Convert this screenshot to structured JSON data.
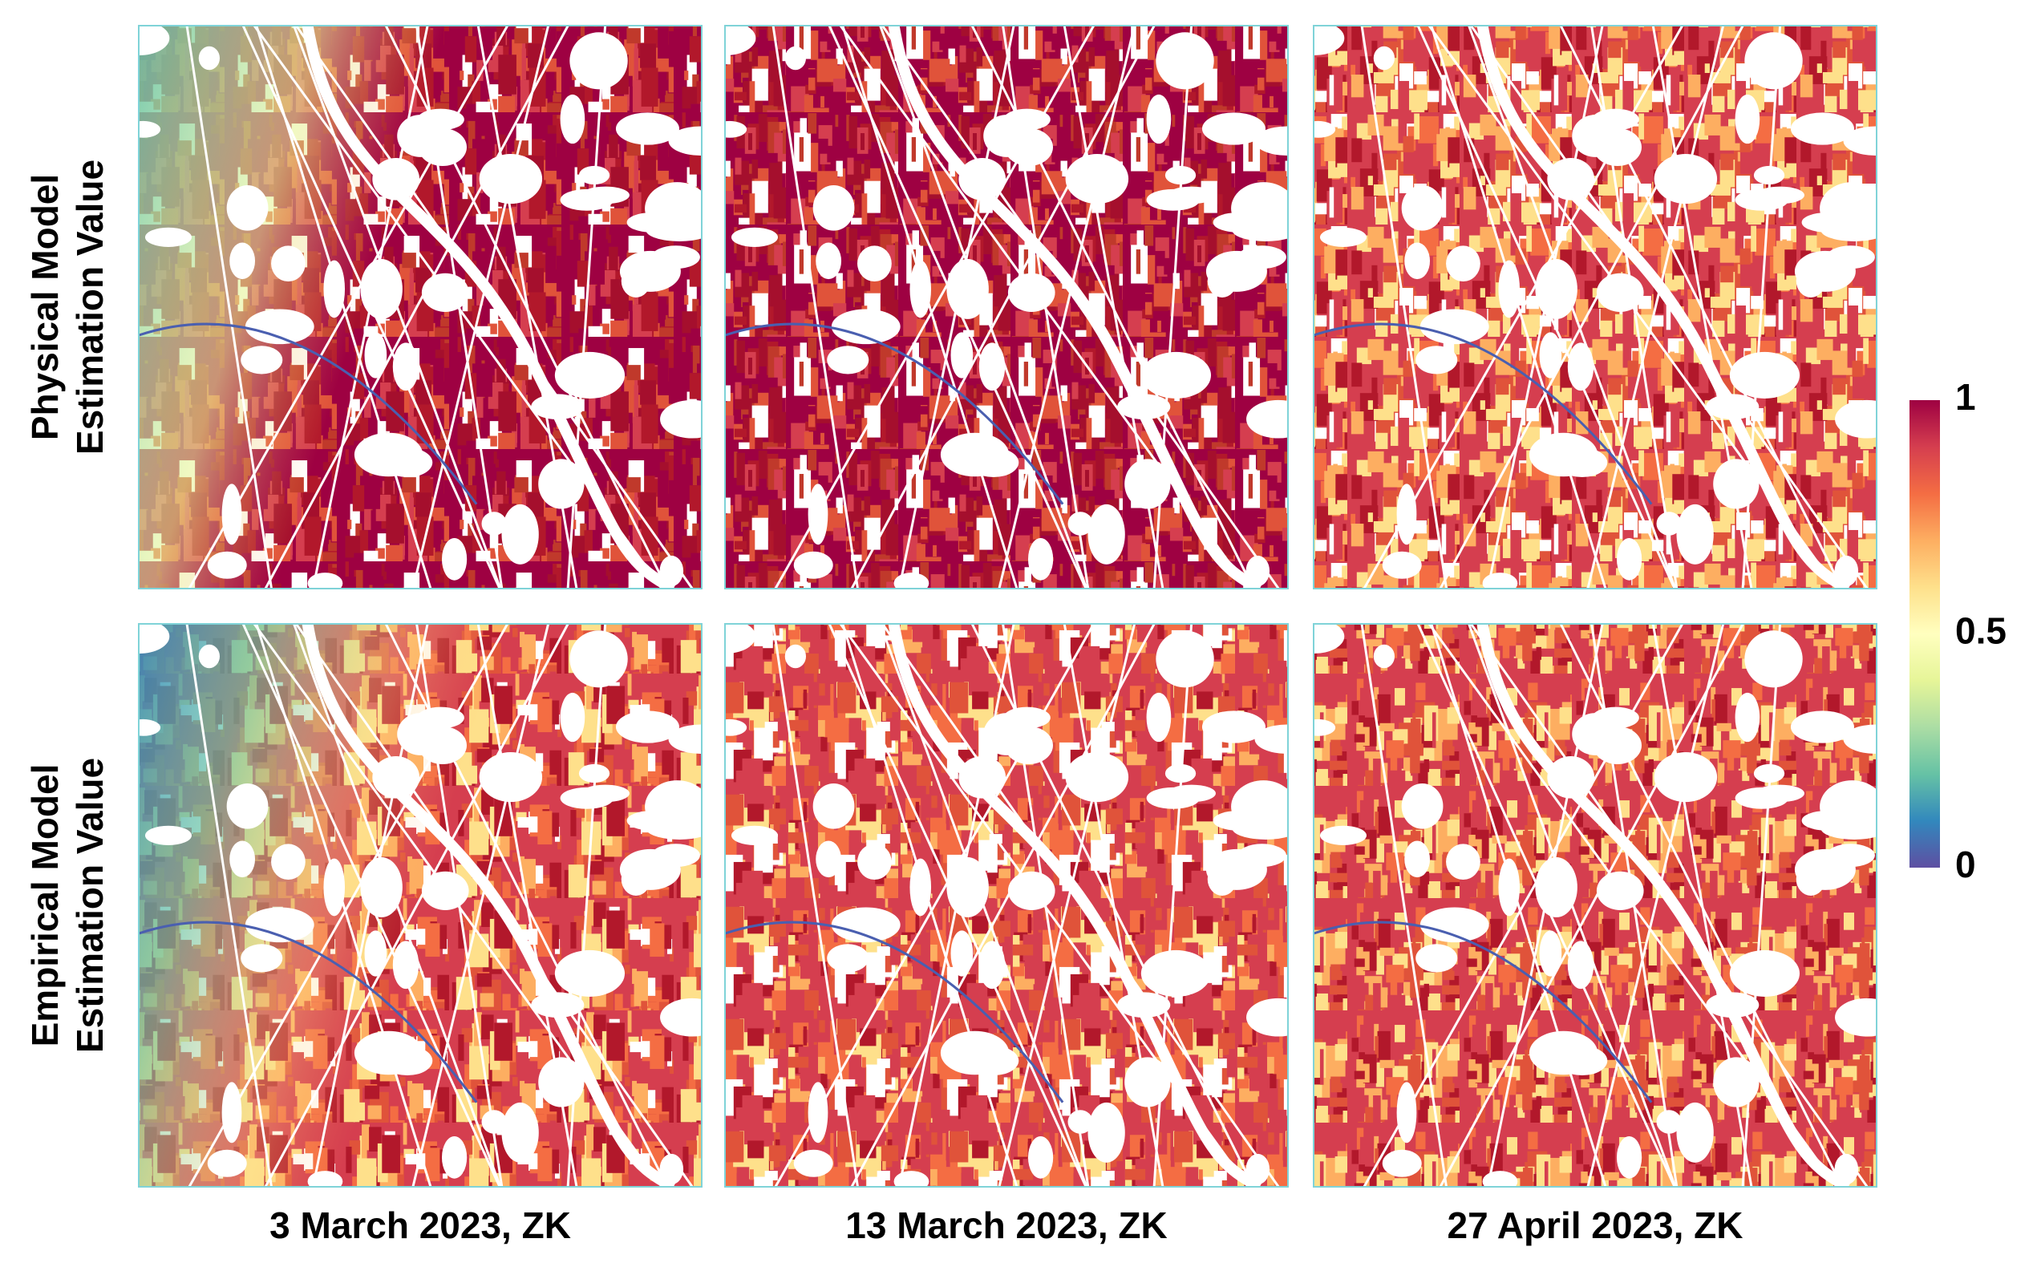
{
  "figure": {
    "rows": [
      [
        "Physical Model",
        "Estimation Value"
      ],
      [
        "Empirical Model",
        "Estimation Value"
      ]
    ],
    "columns": [
      "3 March 2023, ZK",
      "13 March 2023, ZK",
      "27 April 2023, ZK"
    ],
    "colorbar": {
      "lim": [
        0,
        1
      ],
      "ticks": [
        0,
        0.5,
        1
      ]
    }
  }
}
